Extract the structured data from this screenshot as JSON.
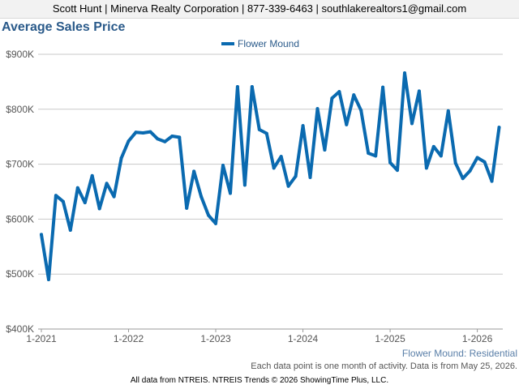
{
  "header": {
    "contact": "Scott Hunt | Minerva Realty Corporation | 877-339-6463 | southlakerealtors1@gmail.com"
  },
  "colors": {
    "line": "#0a6ab0",
    "grid": "#c8c8c8",
    "axis_text": "#555555"
  },
  "chart_data": {
    "type": "line",
    "title": "Average Sales Price",
    "subtitle": "Flower Mound: Residential",
    "legend_position": "top-center",
    "grid": true,
    "ylim": [
      400000,
      900000
    ],
    "y_ticks": [
      400000,
      500000,
      600000,
      700000,
      800000,
      900000
    ],
    "y_tick_labels": [
      "$400K",
      "$500K",
      "$600K",
      "$700K",
      "$800K",
      "$900K"
    ],
    "x_ticks": [
      "2021-01",
      "2022-01",
      "2023-01",
      "2024-01",
      "2025-01",
      "2026-01"
    ],
    "x_tick_labels": [
      "1-2021",
      "1-2022",
      "1-2023",
      "1-2024",
      "1-2025",
      "1-2026"
    ],
    "x": [
      "2021-01",
      "2021-02",
      "2021-03",
      "2021-04",
      "2021-05",
      "2021-06",
      "2021-07",
      "2021-08",
      "2021-09",
      "2021-10",
      "2021-11",
      "2021-12",
      "2022-01",
      "2022-02",
      "2022-03",
      "2022-04",
      "2022-05",
      "2022-06",
      "2022-07",
      "2022-08",
      "2022-09",
      "2022-10",
      "2022-11",
      "2022-12",
      "2023-01",
      "2023-02",
      "2023-03",
      "2023-04",
      "2023-05",
      "2023-06",
      "2023-07",
      "2023-08",
      "2023-09",
      "2023-10",
      "2023-11",
      "2023-12",
      "2024-01",
      "2024-02",
      "2024-03",
      "2024-04",
      "2024-05",
      "2024-06",
      "2024-07",
      "2024-08",
      "2024-09",
      "2024-10",
      "2024-11",
      "2024-12",
      "2025-01",
      "2025-02",
      "2025-03",
      "2025-04",
      "2025-05",
      "2025-06",
      "2025-07",
      "2025-08",
      "2025-09",
      "2025-10",
      "2025-11",
      "2025-12",
      "2026-01",
      "2026-02",
      "2026-03",
      "2026-04"
    ],
    "series": [
      {
        "name": "Flower Mound",
        "values": [
          572000,
          490000,
          643000,
          632000,
          580000,
          657000,
          630000,
          679000,
          619000,
          665000,
          641000,
          711000,
          742000,
          758000,
          757000,
          759000,
          746000,
          741000,
          751000,
          749000,
          620000,
          687000,
          641000,
          607000,
          592000,
          698000,
          647000,
          841000,
          662000,
          841000,
          763000,
          756000,
          693000,
          714000,
          660000,
          678000,
          770000,
          676000,
          801000,
          726000,
          820000,
          832000,
          772000,
          826000,
          798000,
          720000,
          715000,
          840000,
          703000,
          689000,
          866000,
          774000,
          833000,
          693000,
          732000,
          715000,
          797000,
          702000,
          674000,
          688000,
          712000,
          704000,
          669000,
          767000
        ]
      }
    ]
  },
  "notes": {
    "data_note": "Each data point is one month of activity. Data is from May 25, 2026.",
    "footer": "All data from NTREIS. NTREIS Trends © 2026 ShowingTime Plus, LLC."
  }
}
